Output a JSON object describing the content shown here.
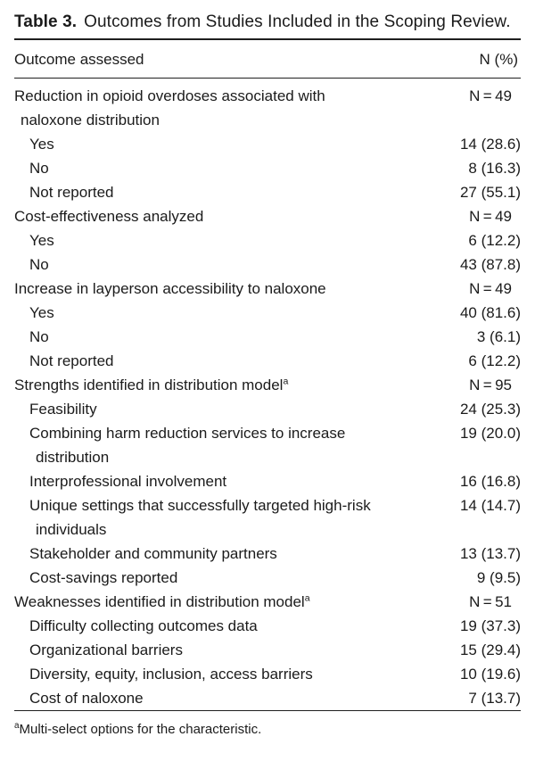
{
  "table": {
    "title_label": "Table 3.",
    "title_text": "Outcomes from Studies Included in the Scoping Review.",
    "columns": [
      "Outcome assessed",
      "N (%)"
    ],
    "rows": [
      {
        "lines": [
          "Reduction in opioid overdoses associated with",
          "naloxone distribution"
        ],
        "indent": 0,
        "value": "N = 49",
        "value_style": "n"
      },
      {
        "lines": [
          "Yes"
        ],
        "indent": 1,
        "value": "14 (28.6)",
        "value_style": "pct"
      },
      {
        "lines": [
          "No"
        ],
        "indent": 1,
        "value": "8 (16.3)",
        "value_style": "pct"
      },
      {
        "lines": [
          "Not reported"
        ],
        "indent": 1,
        "value": "27 (55.1)",
        "value_style": "pct"
      },
      {
        "lines": [
          "Cost-effectiveness analyzed"
        ],
        "indent": 0,
        "value": "N = 49",
        "value_style": "n"
      },
      {
        "lines": [
          "Yes"
        ],
        "indent": 1,
        "value": "6 (12.2)",
        "value_style": "pct"
      },
      {
        "lines": [
          "No"
        ],
        "indent": 1,
        "value": "43 (87.8)",
        "value_style": "pct"
      },
      {
        "lines": [
          "Increase in layperson accessibility to naloxone"
        ],
        "indent": 0,
        "value": "N = 49",
        "value_style": "n"
      },
      {
        "lines": [
          "Yes"
        ],
        "indent": 1,
        "value": "40 (81.6)",
        "value_style": "pct"
      },
      {
        "lines": [
          "No"
        ],
        "indent": 1,
        "value": "3 (6.1)",
        "value_style": "pct"
      },
      {
        "lines": [
          "Not reported"
        ],
        "indent": 1,
        "value": "6 (12.2)",
        "value_style": "pct"
      },
      {
        "lines": [
          "Strengths identified in distribution model"
        ],
        "sup": "a",
        "indent": 0,
        "value": "N = 95",
        "value_style": "n"
      },
      {
        "lines": [
          "Feasibility"
        ],
        "indent": 1,
        "value": "24 (25.3)",
        "value_style": "pct"
      },
      {
        "lines": [
          "Combining harm reduction services to increase",
          "distribution"
        ],
        "indent": 1,
        "value": "19 (20.0)",
        "value_style": "pct"
      },
      {
        "lines": [
          "Interprofessional involvement"
        ],
        "indent": 1,
        "value": "16 (16.8)",
        "value_style": "pct"
      },
      {
        "lines": [
          "Unique settings that successfully targeted high-risk",
          "individuals"
        ],
        "indent": 1,
        "value": "14 (14.7)",
        "value_style": "pct"
      },
      {
        "lines": [
          "Stakeholder and community partners"
        ],
        "indent": 1,
        "value": "13 (13.7)",
        "value_style": "pct"
      },
      {
        "lines": [
          "Cost-savings reported"
        ],
        "indent": 1,
        "value": "9 (9.5)",
        "value_style": "pct"
      },
      {
        "lines": [
          "Weaknesses identified in distribution model"
        ],
        "sup": "a",
        "indent": 0,
        "value": "N = 51",
        "value_style": "n"
      },
      {
        "lines": [
          "Difficulty collecting outcomes data"
        ],
        "indent": 1,
        "value": "19 (37.3)",
        "value_style": "pct"
      },
      {
        "lines": [
          "Organizational barriers"
        ],
        "indent": 1,
        "value": "15 (29.4)",
        "value_style": "pct"
      },
      {
        "lines": [
          "Diversity, equity, inclusion, access barriers"
        ],
        "indent": 1,
        "value": "10 (19.6)",
        "value_style": "pct"
      },
      {
        "lines": [
          "Cost of naloxone"
        ],
        "indent": 1,
        "value": "7 (13.7)",
        "value_style": "pct"
      }
    ],
    "footnote_marker": "a",
    "footnote_text": "Multi-select options for the characteristic."
  }
}
